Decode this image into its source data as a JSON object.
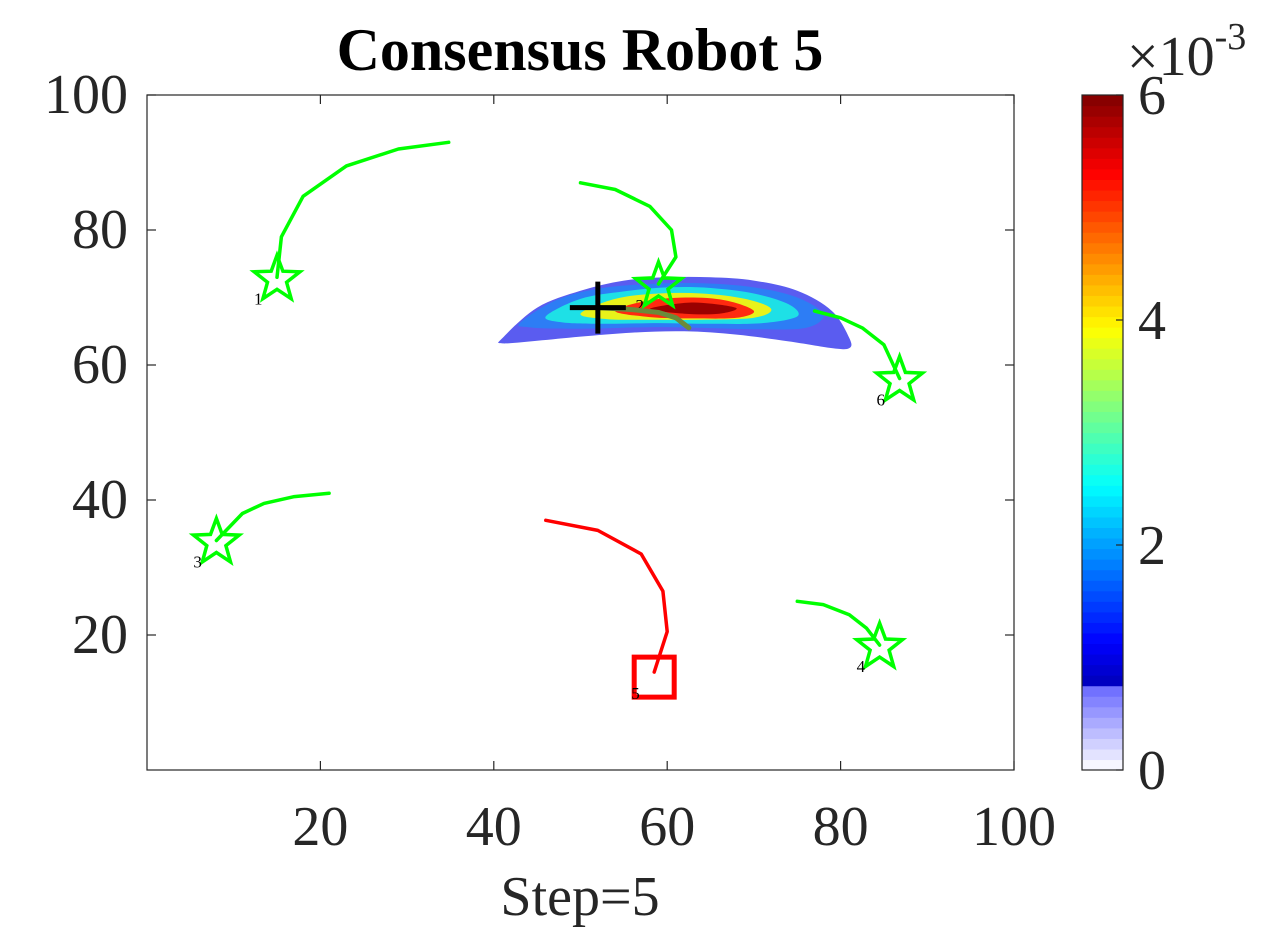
{
  "chart_data": {
    "type": "contour",
    "title": "Consensus Robot 5",
    "xlabel": "Step=5",
    "ylabel": "",
    "xlim": [
      0,
      100
    ],
    "ylim": [
      0,
      100
    ],
    "xticks": [
      "20",
      "40",
      "60",
      "80",
      "100"
    ],
    "yticks": [
      "20",
      "40",
      "60",
      "80",
      "100"
    ],
    "grid": false,
    "colorbar": {
      "colormap": "jet",
      "range": [
        0,
        6
      ],
      "ticks": [
        "0",
        "2",
        "4",
        "6"
      ],
      "multiplier_base": "×10",
      "multiplier_exp": "-3"
    },
    "density": {
      "peak": [
        63,
        68
      ],
      "levels": [
        {
          "value": 0.6,
          "color": "#5a5cf0",
          "points": [
            [
              41,
              64
            ],
            [
              45,
              68.5
            ],
            [
              50,
              71
            ],
            [
              55,
              72.5
            ],
            [
              60,
              73
            ],
            [
              65,
              73
            ],
            [
              70,
              72.5
            ],
            [
              75,
              71
            ],
            [
              79,
              68
            ],
            [
              81,
              64
            ],
            [
              81,
              62.5
            ],
            [
              79,
              62.5
            ],
            [
              74,
              63.5
            ],
            [
              68,
              64.5
            ],
            [
              62,
              65
            ],
            [
              56,
              64.8
            ],
            [
              50,
              64.2
            ],
            [
              45,
              63.6
            ],
            [
              41,
              63.2
            ]
          ]
        },
        {
          "value": 2.0,
          "color": "#2d7df5",
          "points": [
            [
              43,
              66.2
            ],
            [
              47,
              69.5
            ],
            [
              52,
              71.3
            ],
            [
              58,
              72
            ],
            [
              64,
              72.1
            ],
            [
              70,
              71.5
            ],
            [
              75,
              70
            ],
            [
              78,
              67.5
            ],
            [
              76,
              65.5
            ],
            [
              70,
              65.3
            ],
            [
              64,
              65.5
            ],
            [
              58,
              65.6
            ],
            [
              52,
              65.4
            ],
            [
              47,
              65.4
            ],
            [
              44,
              65.6
            ]
          ]
        },
        {
          "value": 3.0,
          "color": "#1ee0e6",
          "points": [
            [
              46,
              67.2
            ],
            [
              50,
              69.8
            ],
            [
              55,
              70.9
            ],
            [
              60,
              71.5
            ],
            [
              65,
              71.4
            ],
            [
              70,
              70.6
            ],
            [
              74,
              69
            ],
            [
              75,
              67.2
            ],
            [
              71,
              66.2
            ],
            [
              65,
              66.1
            ],
            [
              59,
              66.2
            ],
            [
              53,
              66.1
            ],
            [
              48,
              66.3
            ]
          ]
        },
        {
          "value": 4.0,
          "color": "#e8f21a",
          "points": [
            [
              50,
              67.6
            ],
            [
              54,
              69.8
            ],
            [
              59,
              70.6
            ],
            [
              64,
              70.6
            ],
            [
              69,
              69.8
            ],
            [
              72,
              68.3
            ],
            [
              70,
              67
            ],
            [
              64,
              66.7
            ],
            [
              58,
              66.7
            ],
            [
              53,
              66.8
            ]
          ]
        },
        {
          "value": 5.0,
          "color": "#ff2a10",
          "points": [
            [
              54,
              68
            ],
            [
              58,
              69.6
            ],
            [
              63,
              70
            ],
            [
              67,
              69.5
            ],
            [
              70,
              68
            ],
            [
              68,
              67
            ],
            [
              63,
              66.9
            ],
            [
              58,
              67.1
            ]
          ]
        },
        {
          "value": 5.8,
          "color": "#9a0000",
          "points": [
            [
              58,
              68.3
            ],
            [
              62,
              69.2
            ],
            [
              65,
              69.1
            ],
            [
              68,
              68.4
            ],
            [
              66,
              67.6
            ],
            [
              62,
              67.6
            ]
          ]
        }
      ]
    },
    "robots": [
      {
        "id": "1",
        "color": "#00ff00",
        "marker": "star",
        "path": [
          [
            34.8,
            93
          ],
          [
            29,
            92
          ],
          [
            23,
            89.5
          ],
          [
            18,
            85
          ],
          [
            15.5,
            79
          ],
          [
            15,
            73
          ]
        ]
      },
      {
        "id": "2",
        "color": "#00ff00",
        "marker": "star",
        "path": [
          [
            50,
            87
          ],
          [
            54,
            86
          ],
          [
            58,
            83.5
          ],
          [
            60.5,
            80
          ],
          [
            61,
            76
          ],
          [
            59,
            72
          ]
        ]
      },
      {
        "id": "3",
        "color": "#00ff00",
        "marker": "star",
        "path": [
          [
            21,
            41
          ],
          [
            17,
            40.5
          ],
          [
            13.5,
            39.5
          ],
          [
            11,
            38
          ],
          [
            9.5,
            36
          ],
          [
            8,
            34
          ]
        ]
      },
      {
        "id": "4",
        "color": "#00ff00",
        "marker": "star",
        "path": [
          [
            75,
            25
          ],
          [
            78,
            24.5
          ],
          [
            81,
            23
          ],
          [
            83,
            21
          ],
          [
            84.5,
            18.5
          ]
        ]
      },
      {
        "id": "5",
        "color": "#ff0000",
        "marker": "square",
        "path": [
          [
            46,
            37
          ],
          [
            52,
            35.5
          ],
          [
            57,
            32
          ],
          [
            59.5,
            26.5
          ],
          [
            60,
            20.5
          ],
          [
            58.5,
            14.5
          ]
        ]
      },
      {
        "id": "6",
        "color": "#00ff00",
        "marker": "star",
        "path": [
          [
            77,
            68
          ],
          [
            80,
            67
          ],
          [
            82.5,
            65.5
          ],
          [
            85,
            63
          ],
          [
            86.8,
            58
          ]
        ]
      }
    ],
    "estimate_marker": {
      "x": 52,
      "y": 68.5,
      "color": "#000000",
      "shape": "plus"
    },
    "estimate_trail": {
      "color": "#6b8a3a",
      "points": [
        [
          52,
          68.5
        ],
        [
          56,
          68.2
        ],
        [
          59,
          67.8
        ],
        [
          61,
          67
        ],
        [
          62.5,
          65.5
        ]
      ]
    }
  }
}
